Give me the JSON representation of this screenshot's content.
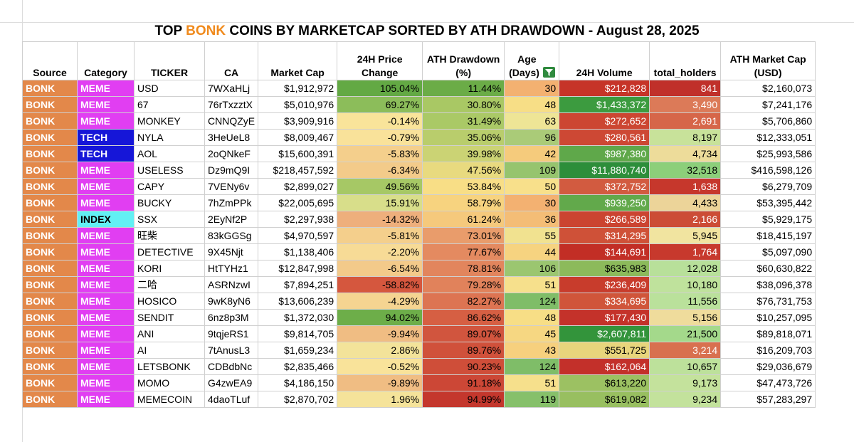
{
  "title": {
    "prefix": "TOP ",
    "accent": "BONK",
    "suffix": " COINS BY MARKETCAP SORTED BY ATH DRAWDOWN - August 28, 2025"
  },
  "colors": {
    "accent": "#f08a1c",
    "source_bg": "#e3884a",
    "meme_bg": "#e13ef2",
    "tech_bg": "#1616d8",
    "index_bg": "#62f0f4",
    "filter_icon": "#2f8a3e"
  },
  "headers": {
    "source": "Source",
    "category": "Category",
    "ticker": "TICKER",
    "ca": "CA",
    "market_cap": "Market Cap",
    "price_change": [
      "24H Price",
      "Change"
    ],
    "ath_drawdown": [
      "ATH Drawdown",
      "(%)"
    ],
    "age": [
      "Age",
      "(Days)"
    ],
    "volume": "24H Volume",
    "holders": "total_holders",
    "ath_market_cap": [
      "ATH Market Cap",
      "(USD)"
    ]
  },
  "icons": {
    "age_filter": "filter-icon"
  },
  "rows": [
    {
      "source": "BONK",
      "category": "MEME",
      "ticker": "USD",
      "ca": "7WXaHLj",
      "market_cap": "$1,912,972",
      "price_change": "105.04%",
      "ath_drawdown": "11.44%",
      "age": "30",
      "volume": "$212,828",
      "holders": "841",
      "ath_market_cap": "$2,160,073",
      "colors": {
        "price_change": "#63a944",
        "ath_drawdown": "#6bac47",
        "age": "#f3b171",
        "volume": "#c63428",
        "holders": "#c0302a"
      }
    },
    {
      "source": "BONK",
      "category": "MEME",
      "ticker": "67",
      "ca": "76rTxzztX",
      "market_cap": "$5,010,976",
      "price_change": "69.27%",
      "ath_drawdown": "30.80%",
      "age": "48",
      "volume": "$1,433,372",
      "holders": "3,490",
      "ath_market_cap": "$7,241,176",
      "colors": {
        "price_change": "#8cbd5a",
        "ath_drawdown": "#a9c864",
        "age": "#f7de86",
        "volume": "#3c9b3f",
        "holders": "#dc7a58"
      }
    },
    {
      "source": "BONK",
      "category": "MEME",
      "ticker": "MONKEY",
      "ca": "CNNQZyE",
      "market_cap": "$3,909,916",
      "price_change": "-0.14%",
      "ath_drawdown": "31.49%",
      "age": "63",
      "volume": "$272,652",
      "holders": "2,691",
      "ath_market_cap": "$5,706,860",
      "colors": {
        "price_change": "#f9e49a",
        "ath_drawdown": "#aac966",
        "age": "#eee596",
        "volume": "#cc4632",
        "holders": "#d66649"
      }
    },
    {
      "source": "BONK",
      "category": "TECH",
      "ticker": "NYLA",
      "ca": "3HeUeL8",
      "market_cap": "$8,009,467",
      "price_change": "-0.79%",
      "ath_drawdown": "35.06%",
      "age": "96",
      "volume": "$280,561",
      "holders": "8,197",
      "ath_market_cap": "$12,333,051",
      "colors": {
        "price_change": "#f9e29a",
        "ath_drawdown": "#b9cd6c",
        "age": "#aacb78",
        "volume": "#cd4834",
        "holders": "#c8e29a"
      }
    },
    {
      "source": "BONK",
      "category": "TECH",
      "ticker": "AOL",
      "ca": "2oQNkeF",
      "market_cap": "$15,600,391",
      "price_change": "-5.83%",
      "ath_drawdown": "39.98%",
      "age": "42",
      "volume": "$987,380",
      "holders": "4,734",
      "ath_market_cap": "$25,993,586",
      "colors": {
        "price_change": "#f4cf8c",
        "ath_drawdown": "#cbd374",
        "age": "#f5cb7c",
        "volume": "#5fa84a",
        "holders": "#eddc9a"
      }
    },
    {
      "source": "BONK",
      "category": "MEME",
      "ticker": "USELESS",
      "ca": "Dz9mQ9I",
      "market_cap": "$218,457,592",
      "price_change": "-6.34%",
      "ath_drawdown": "47.56%",
      "age": "109",
      "volume": "$11,880,740",
      "holders": "32,518",
      "ath_market_cap": "$416,598,126",
      "colors": {
        "price_change": "#f3cb8a",
        "ath_drawdown": "#e8da7f",
        "age": "#96c46e",
        "volume": "#2d8e3a",
        "holders": "#8ccf7a"
      }
    },
    {
      "source": "BONK",
      "category": "MEME",
      "ticker": "CAPY",
      "ca": "7VENy6v",
      "market_cap": "$2,899,027",
      "price_change": "49.56%",
      "ath_drawdown": "53.84%",
      "age": "50",
      "volume": "$372,752",
      "holders": "1,638",
      "ath_market_cap": "$6,279,709",
      "colors": {
        "price_change": "#a6c865",
        "ath_drawdown": "#f8de86",
        "age": "#f8e08b",
        "volume": "#d25b40",
        "holders": "#c6372c"
      }
    },
    {
      "source": "BONK",
      "category": "MEME",
      "ticker": "BUCKY",
      "ca": "7hZmPPk",
      "market_cap": "$22,005,695",
      "price_change": "15.91%",
      "ath_drawdown": "58.79%",
      "age": "30",
      "volume": "$939,250",
      "holders": "4,433",
      "ath_market_cap": "$53,395,442",
      "colors": {
        "price_change": "#d8de8a",
        "ath_drawdown": "#f7d37f",
        "age": "#f3b171",
        "volume": "#62a94b",
        "holders": "#ecd499"
      }
    },
    {
      "source": "BONK",
      "category": "INDEX",
      "ticker": "SSX",
      "ca": "2EyNf2P",
      "market_cap": "$2,297,938",
      "price_change": "-14.32%",
      "ath_drawdown": "61.24%",
      "age": "36",
      "volume": "$266,589",
      "holders": "2,166",
      "ath_market_cap": "$5,929,175",
      "colors": {
        "price_change": "#eeaf7c",
        "ath_drawdown": "#f5c97c",
        "age": "#f4bd76",
        "volume": "#cb4431",
        "holders": "#cc4c36"
      }
    },
    {
      "source": "BONK",
      "category": "MEME",
      "ticker": "旺柴",
      "ca": "83kGGSg",
      "market_cap": "$4,970,597",
      "price_change": "-5.81%",
      "ath_drawdown": "73.01%",
      "age": "55",
      "volume": "$314,295",
      "holders": "5,945",
      "ath_market_cap": "$18,415,197",
      "colors": {
        "price_change": "#f4cf8c",
        "ath_drawdown": "#e99c6b",
        "age": "#f1e290",
        "volume": "#cf5138",
        "holders": "#f1e4a0"
      }
    },
    {
      "source": "BONK",
      "category": "MEME",
      "ticker": "DETECTIVE",
      "ca": "9X45Njt",
      "market_cap": "$1,138,406",
      "price_change": "-2.20%",
      "ath_drawdown": "77.67%",
      "age": "44",
      "volume": "$144,691",
      "holders": "1,764",
      "ath_market_cap": "$5,097,090",
      "colors": {
        "price_change": "#f7db96",
        "ath_drawdown": "#e48a60",
        "age": "#f6d380",
        "volume": "#c22e25",
        "holders": "#c7392d"
      }
    },
    {
      "source": "BONK",
      "category": "MEME",
      "ticker": "KORI",
      "ca": "HtTYHz1",
      "market_cap": "$12,847,998",
      "price_change": "-6.54%",
      "ath_drawdown": "78.81%",
      "age": "106",
      "volume": "$635,983",
      "holders": "12,028",
      "ath_market_cap": "$60,630,822",
      "colors": {
        "price_change": "#f3ca8a",
        "ath_drawdown": "#e2855d",
        "age": "#9bc670",
        "volume": "#8cba5b",
        "holders": "#b8e09a"
      }
    },
    {
      "source": "BONK",
      "category": "MEME",
      "ticker": "二哈",
      "ca": "ASRNzwI",
      "market_cap": "$7,894,251",
      "price_change": "-58.82%",
      "ath_drawdown": "79.28%",
      "age": "51",
      "volume": "$236,409",
      "holders": "10,180",
      "ath_market_cap": "$38,096,378",
      "colors": {
        "price_change": "#d5573e",
        "ath_drawdown": "#e1825b",
        "age": "#f6e08c",
        "volume": "#c83c2c",
        "holders": "#bfe29c"
      }
    },
    {
      "source": "BONK",
      "category": "MEME",
      "ticker": "HOSICO",
      "ca": "9wK8yN6",
      "market_cap": "$13,606,239",
      "price_change": "-4.29%",
      "ath_drawdown": "82.27%",
      "age": "124",
      "volume": "$334,695",
      "holders": "11,556",
      "ath_market_cap": "$76,731,753",
      "colors": {
        "price_change": "#f5d491",
        "ath_drawdown": "#dd7452",
        "age": "#7fbd68",
        "volume": "#d0553a",
        "holders": "#bae19b"
      }
    },
    {
      "source": "BONK",
      "category": "MEME",
      "ticker": "SENDIT",
      "ca": "6nz8p3M",
      "market_cap": "$1,372,030",
      "price_change": "94.02%",
      "ath_drawdown": "86.62%",
      "age": "48",
      "volume": "$177,430",
      "holders": "5,156",
      "ath_market_cap": "$10,257,095",
      "colors": {
        "price_change": "#6dae49",
        "ath_drawdown": "#d65f43",
        "age": "#f7de86",
        "volume": "#c4322a",
        "holders": "#efdc9c"
      }
    },
    {
      "source": "BONK",
      "category": "MEME",
      "ticker": "ANI",
      "ca": "9tqjeRS1",
      "market_cap": "$9,814,705",
      "price_change": "-9.94%",
      "ath_drawdown": "89.07%",
      "age": "45",
      "volume": "$2,607,811",
      "holders": "21,500",
      "ath_market_cap": "$89,818,071",
      "colors": {
        "price_change": "#f0bd83",
        "ath_drawdown": "#d1553e",
        "age": "#f6d782",
        "volume": "#33943b",
        "holders": "#a4d98b"
      }
    },
    {
      "source": "BONK",
      "category": "MEME",
      "ticker": "AI",
      "ca": "7tAnusL3",
      "market_cap": "$1,659,234",
      "price_change": "2.86%",
      "ath_drawdown": "89.76%",
      "age": "43",
      "volume": "$551,725",
      "holders": "3,214",
      "ath_market_cap": "$16,209,703",
      "colors": {
        "price_change": "#f3e39a",
        "ath_drawdown": "#d0513b",
        "age": "#f6d07e",
        "volume": "#e8d57c",
        "holders": "#d8704f"
      }
    },
    {
      "source": "BONK",
      "category": "MEME",
      "ticker": "LETSBONK",
      "ca": "CDBdbNc",
      "market_cap": "$2,835,466",
      "price_change": "-0.52%",
      "ath_drawdown": "90.23%",
      "age": "124",
      "volume": "$162,064",
      "holders": "10,657",
      "ath_market_cap": "$29,036,679",
      "colors": {
        "price_change": "#f9e39a",
        "ath_drawdown": "#cf4e39",
        "age": "#7fbd68",
        "volume": "#c3302a",
        "holders": "#bde19b"
      }
    },
    {
      "source": "BONK",
      "category": "MEME",
      "ticker": "MOMO",
      "ca": "G4zwEA9",
      "market_cap": "$4,186,150",
      "price_change": "-9.89%",
      "ath_drawdown": "91.18%",
      "age": "51",
      "volume": "$613,220",
      "holders": "9,173",
      "ath_market_cap": "$47,473,726",
      "colors": {
        "price_change": "#f0bd83",
        "ath_drawdown": "#cc4736",
        "age": "#f6e08c",
        "volume": "#9cc162",
        "holders": "#c4e29c"
      }
    },
    {
      "source": "BONK",
      "category": "MEME",
      "ticker": "MEMECOIN",
      "ca": "4daoTLuf",
      "market_cap": "$2,870,702",
      "price_change": "1.96%",
      "ath_drawdown": "94.99%",
      "age": "119",
      "volume": "$619,082",
      "holders": "9,234",
      "ath_market_cap": "$57,283,297",
      "colors": {
        "price_change": "#f5e39a",
        "ath_drawdown": "#c4372d",
        "age": "#86c06a",
        "volume": "#98bf60",
        "holders": "#c3e29c"
      }
    }
  ]
}
